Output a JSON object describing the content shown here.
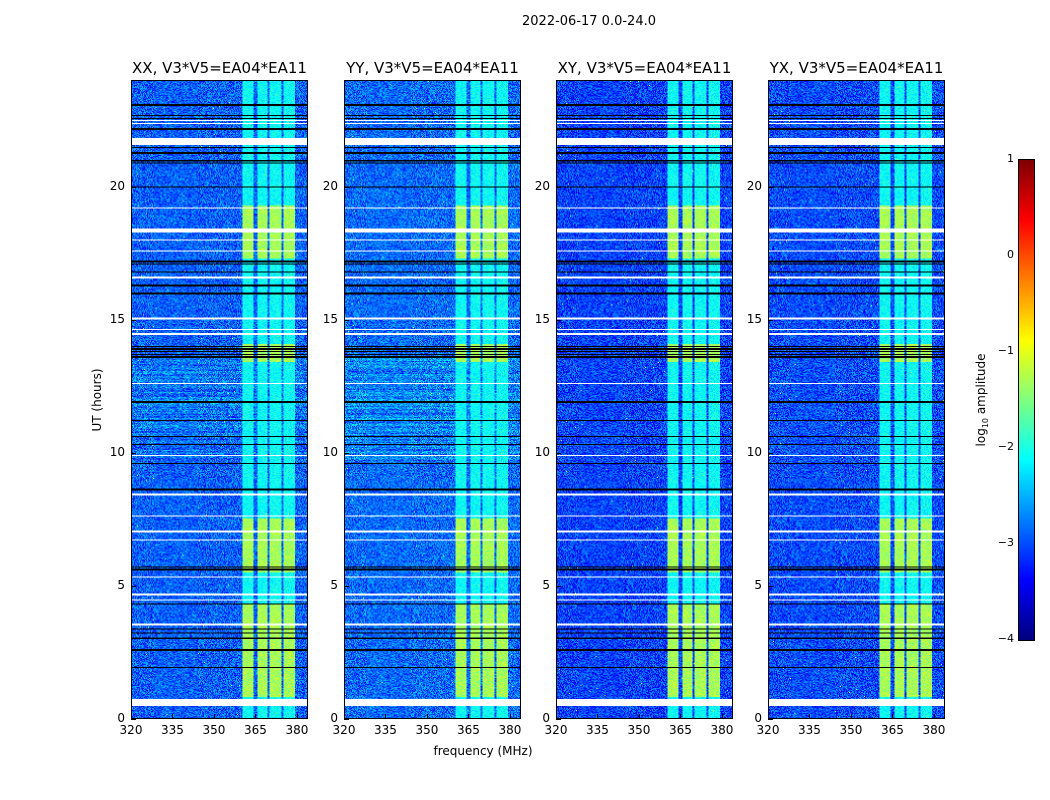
{
  "chart_data": {
    "type": "heatmap",
    "title": "2022-06-17 0.0-24.0",
    "xlabel": "frequency (MHz)",
    "ylabel": "UT (hours)",
    "xlim": [
      320,
      384
    ],
    "ylim": [
      0,
      24
    ],
    "xticks": [
      320,
      335,
      350,
      365,
      380
    ],
    "yticks": [
      0,
      5,
      10,
      15,
      20
    ],
    "panels": [
      {
        "title": "XX, V3*V5=EA04*EA11",
        "background_level": -2.9,
        "stripe_boost": 0.35
      },
      {
        "title": "YY, V3*V5=EA04*EA11",
        "background_level": -2.85,
        "stripe_boost": 0.4
      },
      {
        "title": "XY, V3*V5=EA04*EA11",
        "background_level": -3.05,
        "stripe_boost": 0.05
      },
      {
        "title": "YX, V3*V5=EA04*EA11",
        "background_level": -3.0,
        "stripe_boost": 0.05
      }
    ],
    "bright_channels_mhz": [
      [
        360.5,
        364.6
      ],
      [
        365.8,
        369.4
      ],
      [
        370.4,
        374.6
      ],
      [
        375.5,
        379.7
      ]
    ],
    "bright_channel_levels": {
      "strong": -1.3,
      "weak": -2.1
    },
    "strong_intervals_hours": [
      [
        0.8,
        4.3
      ],
      [
        5.5,
        7.5
      ],
      [
        13.4,
        14.1
      ],
      [
        17.3,
        19.3
      ]
    ],
    "striped_interval_hours": [
      9.7,
      13.6
    ],
    "flagged_white_hours": [
      [
        0.45,
        0.7
      ],
      [
        3.5,
        3.58
      ],
      [
        4.42,
        4.48
      ],
      [
        4.62,
        4.7
      ],
      [
        5.28,
        5.33
      ],
      [
        6.68,
        6.73
      ],
      [
        7.0,
        7.05
      ],
      [
        7.58,
        7.63
      ],
      [
        8.38,
        8.45
      ],
      [
        9.88,
        9.93
      ],
      [
        12.58,
        12.63
      ],
      [
        14.43,
        14.5
      ],
      [
        14.6,
        14.66
      ],
      [
        15.02,
        15.1
      ],
      [
        16.58,
        16.63
      ],
      [
        17.58,
        17.63
      ],
      [
        17.98,
        18.03
      ],
      [
        18.3,
        18.45
      ],
      [
        19.18,
        19.22
      ],
      [
        21.6,
        21.85
      ],
      [
        22.38,
        22.42
      ],
      [
        22.5,
        22.55
      ]
    ],
    "flagged_black_hours": [
      1.9,
      2.55,
      3.0,
      3.2,
      3.35,
      4.3,
      5.6,
      5.7,
      8.6,
      9.6,
      10.3,
      10.6,
      11.2,
      11.9,
      13.6,
      13.7,
      13.8,
      13.9,
      14.0,
      16.0,
      16.3,
      16.8,
      17.1,
      17.2,
      20.0,
      20.9,
      21.0,
      21.3,
      21.5,
      22.2,
      22.6,
      22.7,
      23.1
    ],
    "colorbar": {
      "label_prefix": "log",
      "label_sub": "10",
      "label_suffix": " amplitude",
      "range": [
        -4,
        1
      ],
      "ticks": [
        1,
        0,
        -1,
        -2,
        -3,
        -4
      ],
      "colormap": "jet"
    }
  }
}
